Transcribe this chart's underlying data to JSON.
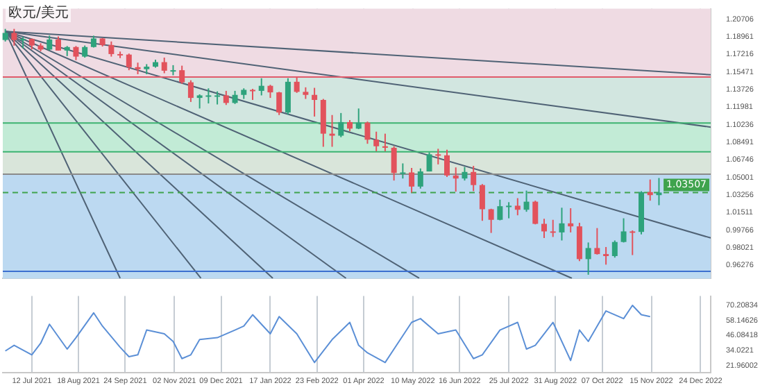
{
  "chart_data": [
    {
      "type": "candlestick",
      "title": "欧元/美元",
      "x": [
        "2021-06-21",
        "2021-06-28",
        "2021-07-05",
        "2021-07-12",
        "2021-07-19",
        "2021-07-26",
        "2021-08-02",
        "2021-08-09",
        "2021-08-16",
        "2021-08-23",
        "2021-08-30",
        "2021-09-06",
        "2021-09-13",
        "2021-09-20",
        "2021-09-27",
        "2021-10-04",
        "2021-10-11",
        "2021-10-18",
        "2021-10-25",
        "2021-11-01",
        "2021-11-08",
        "2021-11-15",
        "2021-11-22",
        "2021-11-29",
        "2021-12-06",
        "2021-12-13",
        "2021-12-20",
        "2021-12-27",
        "2022-01-03",
        "2022-01-10",
        "2022-01-17",
        "2022-01-24",
        "2022-01-31",
        "2022-02-07",
        "2022-02-14",
        "2022-02-21",
        "2022-02-28",
        "2022-03-07",
        "2022-03-14",
        "2022-03-21",
        "2022-03-28",
        "2022-04-04",
        "2022-04-11",
        "2022-04-18",
        "2022-04-25",
        "2022-05-02",
        "2022-05-09",
        "2022-05-16",
        "2022-05-23",
        "2022-05-30",
        "2022-06-06",
        "2022-06-13",
        "2022-06-20",
        "2022-06-27",
        "2022-07-04",
        "2022-07-11",
        "2022-07-18",
        "2022-07-25",
        "2022-08-01",
        "2022-08-08",
        "2022-08-15",
        "2022-08-22",
        "2022-08-29",
        "2022-09-05",
        "2022-09-12",
        "2022-09-19",
        "2022-09-26",
        "2022-10-03",
        "2022-10-10",
        "2022-10-17",
        "2022-10-24",
        "2022-10-31",
        "2022-11-07",
        "2022-11-14",
        "2022-11-21"
      ],
      "ohlc": [
        [
          1.1865,
          1.1975,
          1.185,
          1.1935
        ],
        [
          1.1935,
          1.1975,
          1.1808,
          1.1865
        ],
        [
          1.1865,
          1.1895,
          1.1782,
          1.1875
        ],
        [
          1.1875,
          1.188,
          1.1772,
          1.181
        ],
        [
          1.181,
          1.1832,
          1.1752,
          1.177
        ],
        [
          1.177,
          1.1909,
          1.176,
          1.187
        ],
        [
          1.187,
          1.19,
          1.176,
          1.176
        ],
        [
          1.176,
          1.1805,
          1.1705,
          1.1795
        ],
        [
          1.1795,
          1.1805,
          1.1665,
          1.17
        ],
        [
          1.17,
          1.181,
          1.169,
          1.1795
        ],
        [
          1.1795,
          1.1908,
          1.179,
          1.188
        ],
        [
          1.188,
          1.1885,
          1.18,
          1.1815
        ],
        [
          1.1815,
          1.185,
          1.17,
          1.1725
        ],
        [
          1.1725,
          1.175,
          1.1685,
          1.172
        ],
        [
          1.172,
          1.173,
          1.1565,
          1.1595
        ],
        [
          1.1595,
          1.164,
          1.1525,
          1.1575
        ],
        [
          1.1575,
          1.1625,
          1.1525,
          1.16
        ],
        [
          1.16,
          1.167,
          1.159,
          1.1645
        ],
        [
          1.1645,
          1.169,
          1.1535,
          1.156
        ],
        [
          1.156,
          1.1615,
          1.1515,
          1.1565
        ],
        [
          1.1565,
          1.161,
          1.143,
          1.1445
        ],
        [
          1.1445,
          1.1465,
          1.125,
          1.129
        ],
        [
          1.129,
          1.1325,
          1.1185,
          1.1315
        ],
        [
          1.1315,
          1.1385,
          1.1235,
          1.1315
        ],
        [
          1.1315,
          1.1355,
          1.1225,
          1.1315
        ],
        [
          1.1315,
          1.136,
          1.122,
          1.124
        ],
        [
          1.124,
          1.136,
          1.123,
          1.132
        ],
        [
          1.132,
          1.1385,
          1.128,
          1.137
        ],
        [
          1.137,
          1.138,
          1.127,
          1.136
        ],
        [
          1.136,
          1.1485,
          1.1315,
          1.141
        ],
        [
          1.141,
          1.142,
          1.129,
          1.1345
        ],
        [
          1.1345,
          1.135,
          1.112,
          1.1145
        ],
        [
          1.1145,
          1.1485,
          1.1125,
          1.145
        ],
        [
          1.145,
          1.1495,
          1.134,
          1.135
        ],
        [
          1.135,
          1.1395,
          1.128,
          1.132
        ],
        [
          1.132,
          1.139,
          1.1105,
          1.127
        ],
        [
          1.127,
          1.128,
          1.0805,
          1.0935
        ],
        [
          1.0935,
          1.112,
          1.0805,
          1.0915
        ],
        [
          1.0915,
          1.114,
          1.09,
          1.105
        ],
        [
          1.105,
          1.107,
          1.096,
          1.0985
        ],
        [
          1.0985,
          1.1185,
          1.098,
          1.1045
        ],
        [
          1.1045,
          1.1055,
          1.0835,
          1.0875
        ],
        [
          1.0875,
          1.0955,
          1.076,
          1.081
        ],
        [
          1.081,
          1.0935,
          1.076,
          1.0795
        ],
        [
          1.0795,
          1.081,
          1.047,
          1.0545
        ],
        [
          1.0545,
          1.064,
          1.049,
          1.055
        ],
        [
          1.055,
          1.0595,
          1.035,
          1.041
        ],
        [
          1.041,
          1.059,
          1.039,
          1.056
        ],
        [
          1.056,
          1.075,
          1.056,
          1.073
        ],
        [
          1.073,
          1.0785,
          1.063,
          1.072
        ],
        [
          1.072,
          1.0775,
          1.0505,
          1.052
        ],
        [
          1.052,
          1.06,
          1.036,
          1.049
        ],
        [
          1.049,
          1.0605,
          1.047,
          1.0555
        ],
        [
          1.0555,
          1.0615,
          1.0365,
          1.0425
        ],
        [
          1.0425,
          1.0435,
          1.007,
          1.0185
        ],
        [
          1.0185,
          1.019,
          0.995,
          1.008
        ],
        [
          1.008,
          1.028,
          1.0075,
          1.0215
        ],
        [
          1.0215,
          1.0255,
          1.0095,
          1.022
        ],
        [
          1.022,
          1.0295,
          1.0125,
          1.018
        ],
        [
          1.018,
          1.037,
          1.016,
          1.026
        ],
        [
          1.026,
          1.027,
          1.0035,
          1.004
        ],
        [
          1.004,
          1.009,
          0.99,
          0.9965
        ],
        [
          0.9965,
          1.008,
          0.991,
          0.9955
        ],
        [
          0.9955,
          1.02,
          0.9875,
          1.0045
        ],
        [
          1.0045,
          1.0195,
          0.9955,
          1.0015
        ],
        [
          1.0015,
          1.005,
          0.967,
          0.969
        ],
        [
          0.969,
          0.9855,
          0.9535,
          0.98
        ],
        [
          0.98,
          0.9998,
          0.9735,
          0.974
        ],
        [
          0.974,
          0.981,
          0.9635,
          0.972
        ],
        [
          0.972,
          0.9875,
          0.9705,
          0.986
        ],
        [
          0.986,
          1.0095,
          0.9855,
          0.9965
        ],
        [
          0.9965,
          0.9975,
          0.973,
          0.996
        ],
        [
          0.996,
          1.0365,
          0.9935,
          1.0355
        ],
        [
          1.0355,
          1.048,
          1.027,
          1.0325
        ],
        [
          1.0325,
          1.0495,
          1.0225,
          1.03507
        ]
      ],
      "colors": [
        "#2ea37c",
        "#e2525c",
        "#2ea37c",
        "#e2525c",
        "#e2525c",
        "#2ea37c",
        "#e2525c",
        "#2ea37c",
        "#e2525c",
        "#2ea37c",
        "#2ea37c",
        "#e2525c",
        "#e2525c",
        "#e2525c",
        "#e2525c",
        "#e2525c",
        "#2ea37c",
        "#2ea37c",
        "#e2525c",
        "#2ea37c",
        "#e2525c",
        "#e2525c",
        "#2ea37c",
        "#2ea37c",
        "#2ea37c",
        "#e2525c",
        "#2ea37c",
        "#2ea37c",
        "#e2525c",
        "#2ea37c",
        "#e2525c",
        "#e2525c",
        "#2ea37c",
        "#e2525c",
        "#e2525c",
        "#e2525c",
        "#e2525c",
        "#e2525c",
        "#2ea37c",
        "#e2525c",
        "#2ea37c",
        "#e2525c",
        "#e2525c",
        "#e2525c",
        "#e2525c",
        "#2ea37c",
        "#e2525c",
        "#2ea37c",
        "#2ea37c",
        "#e2525c",
        "#e2525c",
        "#e2525c",
        "#2ea37c",
        "#e2525c",
        "#e2525c",
        "#e2525c",
        "#2ea37c",
        "#2ea37c",
        "#e2525c",
        "#2ea37c",
        "#e2525c",
        "#e2525c",
        "#e2525c",
        "#2ea37c",
        "#e2525c",
        "#e2525c",
        "#2ea37c",
        "#e2525c",
        "#e2525c",
        "#2ea37c",
        "#2ea37c",
        "#e2525c",
        "#2ea37c",
        "#e2525c",
        "#2ea37c"
      ],
      "series": [
        {
          "type": "line",
          "color": "#4f6275",
          "x": [
            "2021-06-21",
            "2023-01-01"
          ],
          "values": [
            1.195,
            1.152
          ]
        },
        {
          "type": "line",
          "color": "#4f6275",
          "x": [
            "2021-06-21",
            "2023-01-01"
          ],
          "values": [
            1.195,
            1.1
          ]
        },
        {
          "type": "line",
          "color": "#4f6275",
          "x": [
            "2021-06-21",
            "2023-01-01"
          ],
          "values": [
            1.195,
            0.99
          ]
        },
        {
          "type": "line",
          "color": "#4f6275",
          "x": [
            "2021-06-21",
            "2022-09-13"
          ],
          "values": [
            1.195,
            0.95
          ]
        },
        {
          "type": "line",
          "color": "#4f6275",
          "x": [
            "2021-06-21",
            "2022-05-15"
          ],
          "values": [
            1.195,
            0.95
          ]
        },
        {
          "type": "line",
          "color": "#4f6275",
          "x": [
            "2021-06-21",
            "2022-03-18"
          ],
          "values": [
            1.195,
            0.95
          ]
        },
        {
          "type": "line",
          "color": "#4f6275",
          "x": [
            "2021-06-21",
            "2022-01-19"
          ],
          "values": [
            1.195,
            0.95
          ]
        },
        {
          "type": "line",
          "color": "#4f6275",
          "x": [
            "2021-06-21",
            "2021-11-23"
          ],
          "values": [
            1.195,
            0.95
          ]
        },
        {
          "type": "line",
          "color": "#4f6275",
          "x": [
            "2021-06-21",
            "2021-09-20"
          ],
          "values": [
            1.195,
            0.95
          ]
        }
      ],
      "bands": [
        {
          "axis": "y",
          "from": 1.1498,
          "to": 1.2175,
          "color": "#efdbe3"
        },
        {
          "axis": "y",
          "from": 1.1041,
          "to": 1.1498,
          "color": "#d2e6e0"
        },
        {
          "axis": "y",
          "from": 1.0755,
          "to": 1.1041,
          "color": "#c2ebd6"
        },
        {
          "axis": "y",
          "from": 1.0533,
          "to": 1.0755,
          "color": "#d9e5da"
        },
        {
          "axis": "y",
          "from": 0.9497,
          "to": 1.0533,
          "color": "#bcd9f1"
        }
      ],
      "ref_lines": [
        {
          "axis": "y",
          "value": 1.1498,
          "color": "#e05a6a"
        },
        {
          "axis": "y",
          "value": 1.1041,
          "color": "#3cb371"
        },
        {
          "axis": "y",
          "value": 1.0755,
          "color": "#3cb371"
        },
        {
          "axis": "y",
          "value": 1.0533,
          "color": "#8a8a8a"
        },
        {
          "axis": "y",
          "value": 0.9569,
          "color": "#3c6fd0"
        },
        {
          "axis": "y",
          "value": 1.03507,
          "label": "1.03507",
          "color": "#3fa34d",
          "line_style": "dashed"
        }
      ],
      "xlim": [
        "2021-06-19",
        "2023-01-01"
      ],
      "xticks": [
        {
          "value": "2021-07-12",
          "label": null
        },
        {
          "value": "2021-08-18",
          "label": null
        },
        {
          "value": "2021-09-24",
          "label": null
        },
        {
          "value": "2021-11-02",
          "label": null
        },
        {
          "value": "2021-12-09",
          "label": null
        },
        {
          "value": "2022-01-17",
          "label": null
        },
        {
          "value": "2022-02-23",
          "label": null
        },
        {
          "value": "2022-04-01",
          "label": null
        },
        {
          "value": "2022-05-10",
          "label": null
        },
        {
          "value": "2022-06-16",
          "label": null
        },
        {
          "value": "2022-07-25",
          "label": null
        },
        {
          "value": "2022-08-31",
          "label": null
        },
        {
          "value": "2022-10-07",
          "label": null
        },
        {
          "value": "2022-11-15",
          "label": null
        },
        {
          "value": "2022-12-24",
          "label": null
        }
      ],
      "ylim": [
        0.9497,
        1.2175
      ],
      "yticks": [
        1.20706,
        1.18961,
        1.17216,
        1.15471,
        1.13726,
        1.11981,
        1.10236,
        1.08491,
        1.06746,
        1.05001,
        1.03256,
        1.01511,
        0.99766,
        0.98021,
        0.96276
      ],
      "grid": "x",
      "tick_labels": "y",
      "legend": false
    },
    {
      "type": "line",
      "color": "#5b8fd6",
      "x": [
        "2021-06-21",
        "2021-06-28",
        "2021-07-12",
        "2021-07-19",
        "2021-07-26",
        "2021-08-09",
        "2021-08-16",
        "2021-08-30",
        "2021-09-06",
        "2021-09-20",
        "2021-09-27",
        "2021-10-04",
        "2021-10-11",
        "2021-10-25",
        "2021-11-01",
        "2021-11-08",
        "2021-11-15",
        "2021-11-22",
        "2021-12-06",
        "2021-12-20",
        "2021-12-27",
        "2022-01-03",
        "2022-01-17",
        "2022-01-24",
        "2022-02-07",
        "2022-02-21",
        "2022-03-07",
        "2022-03-21",
        "2022-03-28",
        "2022-04-04",
        "2022-04-18",
        "2022-05-09",
        "2022-05-16",
        "2022-05-30",
        "2022-06-13",
        "2022-06-27",
        "2022-07-04",
        "2022-07-18",
        "2022-08-01",
        "2022-08-08",
        "2022-08-15",
        "2022-08-29",
        "2022-09-12",
        "2022-09-19",
        "2022-09-26",
        "2022-10-10",
        "2022-10-24",
        "2022-10-31",
        "2022-11-07",
        "2022-11-14"
      ],
      "values": [
        33.7,
        38.2,
        30.6,
        39.8,
        55,
        35.2,
        44.3,
        64.1,
        53.5,
        36.7,
        29.1,
        30.6,
        50.4,
        47.4,
        41.3,
        27.6,
        30.6,
        42.8,
        44.3,
        50.4,
        53.5,
        62.6,
        47.4,
        61.1,
        47.4,
        24.5,
        42.8,
        56.5,
        38.2,
        32.2,
        24.5,
        56.5,
        59.5,
        47.4,
        50.4,
        27.6,
        30.6,
        50.4,
        56.5,
        35.2,
        38.2,
        56.5,
        26.1,
        50.4,
        41.3,
        65.6,
        59.5,
        70.1,
        62.6,
        61.1
      ],
      "xlim": [
        "2021-06-19",
        "2023-01-01"
      ],
      "xticks": [
        {
          "value": "2021-07-12",
          "label": "12 Jul 2021"
        },
        {
          "value": "2021-08-18",
          "label": "18 Aug 2021"
        },
        {
          "value": "2021-09-24",
          "label": "24 Sep 2021"
        },
        {
          "value": "2021-11-02",
          "label": "02 Nov 2021"
        },
        {
          "value": "2021-12-09",
          "label": "09 Dec 2021"
        },
        {
          "value": "2022-01-17",
          "label": "17 Jan 2022"
        },
        {
          "value": "2022-02-23",
          "label": "23 Feb 2022"
        },
        {
          "value": "2022-04-01",
          "label": "01 Apr 2022"
        },
        {
          "value": "2022-05-10",
          "label": "10 May 2022"
        },
        {
          "value": "2022-06-16",
          "label": "16 Jun 2022"
        },
        {
          "value": "2022-07-25",
          "label": "25 Jul 2022"
        },
        {
          "value": "2022-08-31",
          "label": "31 Aug 2022"
        },
        {
          "value": "2022-10-07",
          "label": "07 Oct 2022"
        },
        {
          "value": "2022-11-15",
          "label": "15 Nov 2022"
        },
        {
          "value": "2022-12-24",
          "label": "24 Dec 2022"
        }
      ],
      "ylim": [
        16.5,
        77.5
      ],
      "yticks": [
        70.20834,
        58.14626,
        46.08418,
        34.0221,
        21.96002
      ],
      "grid": "x",
      "legend": false
    }
  ]
}
